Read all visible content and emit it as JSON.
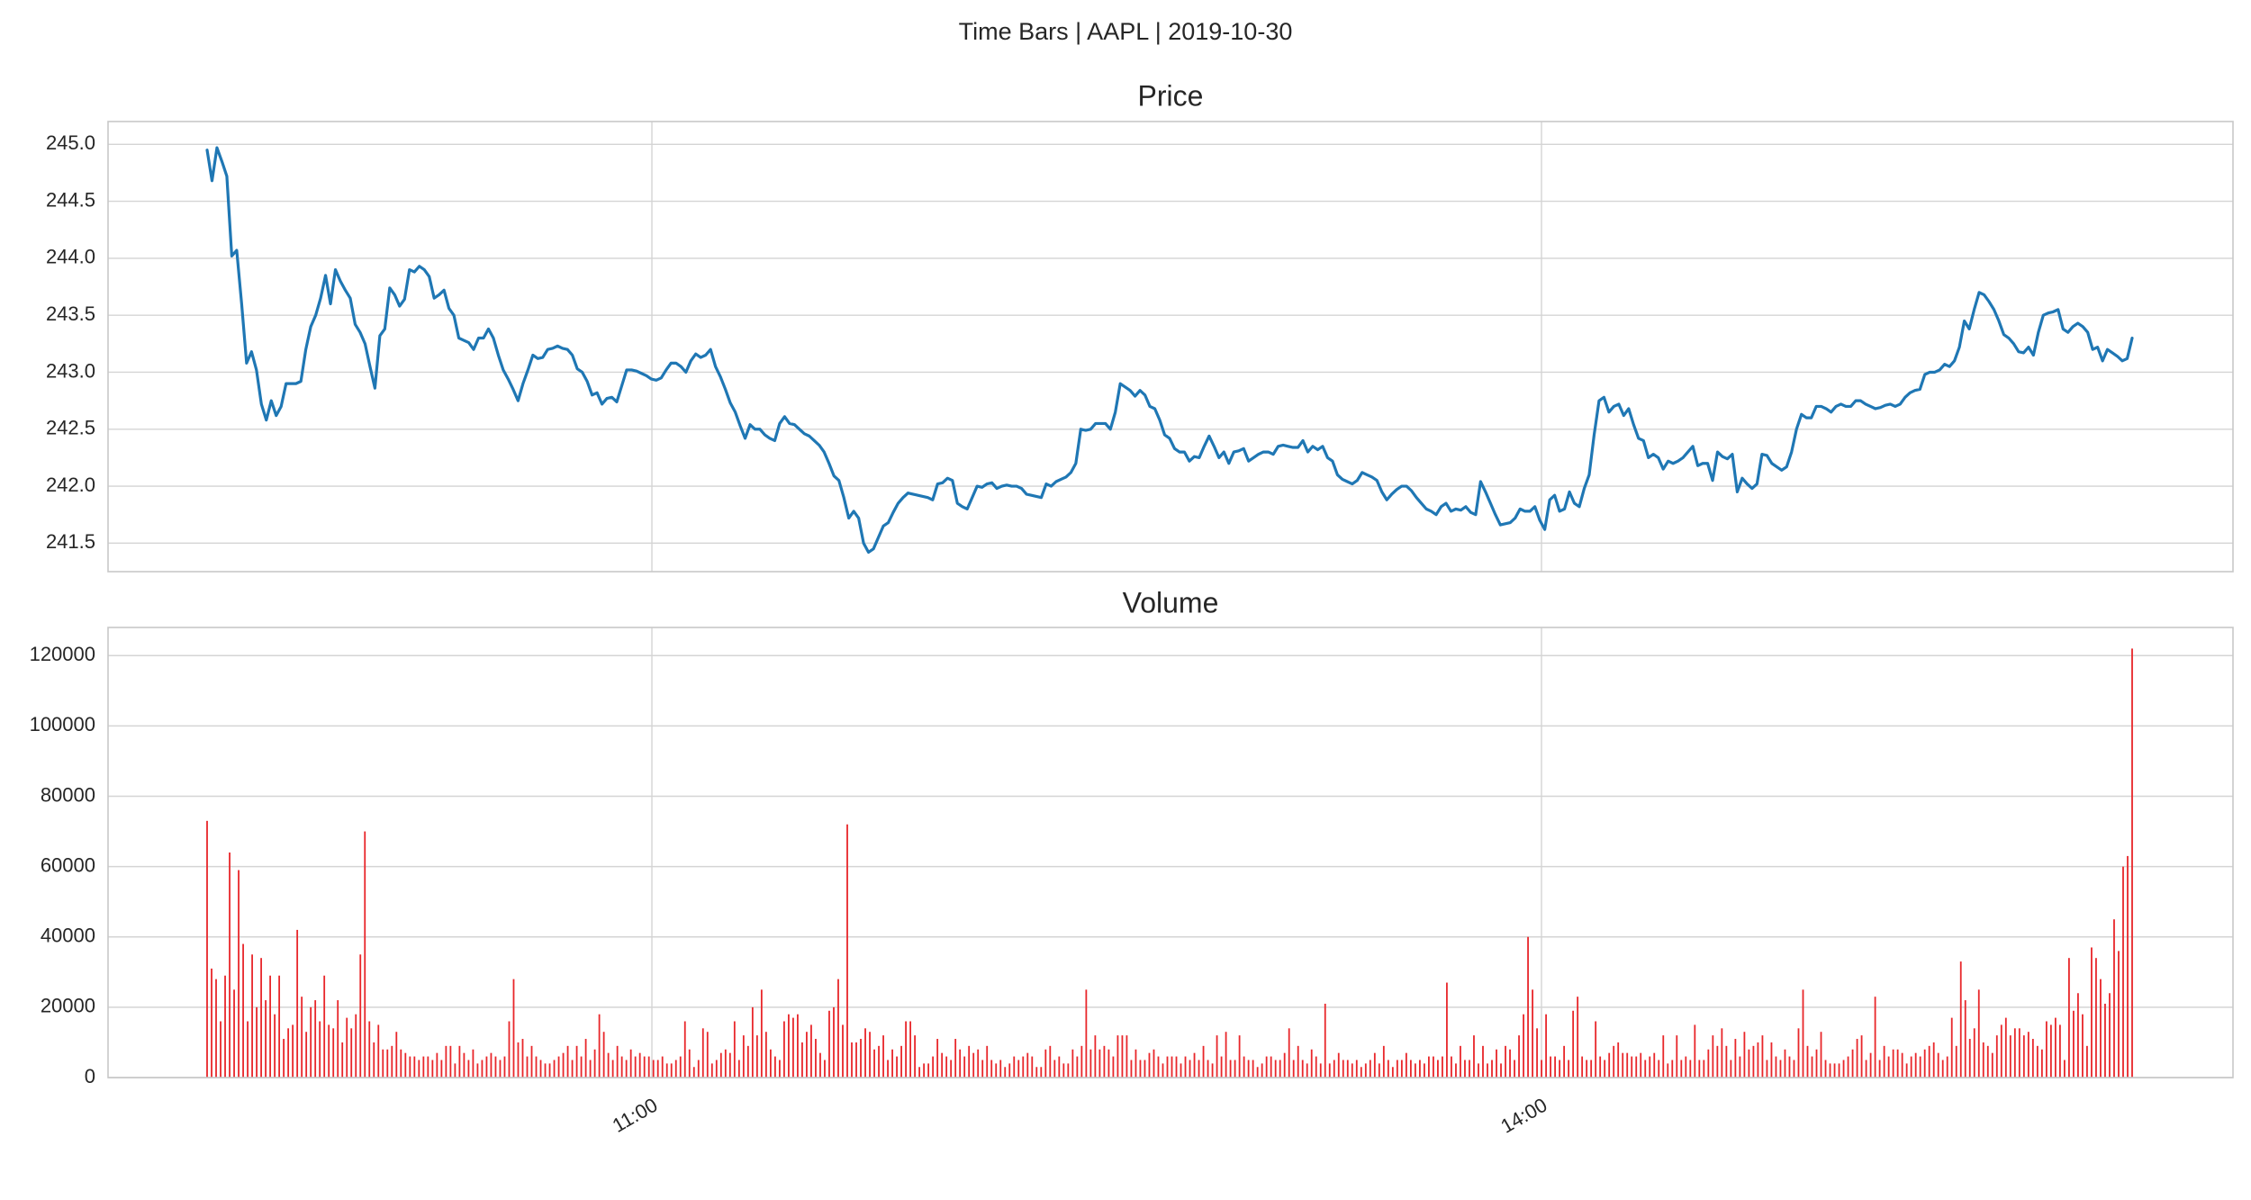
{
  "suptitle": "Time Bars | AAPL | 2019-10-30",
  "colors": {
    "price": "#1f77b4",
    "volume": "#e8262a"
  },
  "chart_data": [
    {
      "type": "line",
      "title": "Price",
      "xlabel": "",
      "ylabel": "",
      "x_axis": {
        "type": "time",
        "ticks": [
          "11:00",
          "14:00"
        ]
      },
      "ylim": [
        241.25,
        245.2
      ],
      "yticks": [
        "241.5",
        "242.0",
        "242.5",
        "243.0",
        "243.5",
        "244.0",
        "244.5",
        "245.0"
      ],
      "grid": true,
      "series": [
        {
          "values": [
            244.95,
            244.68,
            244.97,
            244.85,
            244.72,
            244.02,
            244.07,
            243.6,
            243.08,
            243.18,
            243.02,
            242.72,
            242.58,
            242.75,
            242.62,
            242.7,
            242.9,
            242.9,
            242.9,
            242.92,
            243.2,
            243.4,
            243.5,
            243.65,
            243.85,
            243.6,
            243.9,
            243.8,
            243.72,
            243.65,
            243.42,
            243.35,
            243.25,
            243.05,
            242.86,
            243.32,
            243.38,
            243.74,
            243.68,
            243.58,
            243.64,
            243.9,
            243.88,
            243.93,
            243.9,
            243.84,
            243.65,
            243.68,
            243.72,
            243.56,
            243.5,
            243.3,
            243.28,
            243.26,
            243.2,
            243.3,
            243.3,
            243.38,
            243.3,
            243.15,
            243.02,
            242.94,
            242.85,
            242.75,
            242.9,
            243.02,
            243.15,
            243.12,
            243.13,
            243.2,
            243.21,
            243.23,
            243.21,
            243.2,
            243.15,
            243.03,
            243.0,
            242.92,
            242.8,
            242.82,
            242.72,
            242.77,
            242.78,
            242.74,
            242.88,
            243.02,
            243.02,
            243.01,
            242.99,
            242.97,
            242.94,
            242.93,
            242.95,
            243.02,
            243.08,
            243.08,
            243.05,
            243.0,
            243.1,
            243.16,
            243.13,
            243.15,
            243.2,
            243.05,
            242.96,
            242.85,
            242.73,
            242.65,
            242.53,
            242.42,
            242.54,
            242.5,
            242.5,
            242.45,
            242.42,
            242.4,
            242.55,
            242.61,
            242.55,
            242.54,
            242.5,
            242.46,
            242.44,
            242.4,
            242.36,
            242.3,
            242.2,
            242.09,
            242.05,
            241.9,
            241.72,
            241.78,
            241.72,
            241.5,
            241.42,
            241.45,
            241.55,
            241.65,
            241.68,
            241.77,
            241.85,
            241.9,
            241.94,
            241.93,
            241.92,
            241.91,
            241.9,
            241.88,
            242.02,
            242.03,
            242.07,
            242.05,
            241.85,
            241.82,
            241.8,
            241.9,
            242.0,
            241.99,
            242.02,
            242.03,
            241.98,
            242.0,
            242.01,
            242.0,
            242.0,
            241.98,
            241.93,
            241.92,
            241.91,
            241.9,
            242.02,
            242.0,
            242.04,
            242.06,
            242.08,
            242.12,
            242.2,
            242.5,
            242.49,
            242.5,
            242.55,
            242.55,
            242.55,
            242.5,
            242.65,
            242.9,
            242.87,
            242.84,
            242.79,
            242.84,
            242.8,
            242.7,
            242.68,
            242.58,
            242.45,
            242.42,
            242.33,
            242.3,
            242.3,
            242.22,
            242.26,
            242.25,
            242.35,
            242.44,
            242.35,
            242.25,
            242.3,
            242.2,
            242.3,
            242.31,
            242.33,
            242.22,
            242.25,
            242.28,
            242.3,
            242.3,
            242.28,
            242.35,
            242.36,
            242.35,
            242.34,
            242.34,
            242.4,
            242.3,
            242.35,
            242.32,
            242.35,
            242.25,
            242.22,
            242.1,
            242.06,
            242.04,
            242.02,
            242.05,
            242.12,
            242.1,
            242.08,
            242.05,
            241.95,
            241.88,
            241.93,
            241.97,
            242.0,
            242.0,
            241.96,
            241.9,
            241.85,
            241.8,
            241.78,
            241.75,
            241.82,
            241.85,
            241.78,
            241.8,
            241.79,
            241.82,
            241.77,
            241.75,
            242.04,
            241.95,
            241.85,
            241.75,
            241.66,
            241.67,
            241.68,
            241.72,
            241.8,
            241.78,
            241.78,
            241.82,
            241.7,
            241.62,
            241.88,
            241.92,
            241.78,
            241.8,
            241.95,
            241.85,
            241.82,
            241.98,
            242.1,
            242.45,
            242.75,
            242.78,
            242.65,
            242.7,
            242.72,
            242.62,
            242.68,
            242.54,
            242.42,
            242.4,
            242.25,
            242.28,
            242.25,
            242.15,
            242.22,
            242.2,
            242.22,
            242.25,
            242.3,
            242.35,
            242.18,
            242.2,
            242.2,
            242.05,
            242.3,
            242.26,
            242.24,
            242.28,
            241.95,
            242.07,
            242.02,
            241.98,
            242.02,
            242.28,
            242.27,
            242.2,
            242.17,
            242.14,
            242.17,
            242.3,
            242.5,
            242.63,
            242.6,
            242.6,
            242.7,
            242.7,
            242.68,
            242.65,
            242.7,
            242.72,
            242.7,
            242.7,
            242.75,
            242.75,
            242.72,
            242.7,
            242.68,
            242.69,
            242.71,
            242.72,
            242.7,
            242.72,
            242.78,
            242.82,
            242.84,
            242.85,
            242.98,
            243.0,
            243.0,
            243.02,
            243.07,
            243.05,
            243.1,
            243.22,
            243.45,
            243.38,
            243.55,
            243.7,
            243.68,
            243.62,
            243.55,
            243.45,
            243.33,
            243.3,
            243.25,
            243.18,
            243.17,
            243.22,
            243.15,
            243.35,
            243.5,
            243.52,
            243.53,
            243.55,
            243.38,
            243.35,
            243.4,
            243.43,
            243.4,
            243.35,
            243.2,
            243.22,
            243.1,
            243.2,
            243.17,
            243.14,
            243.1,
            243.12,
            243.3
          ]
        }
      ]
    },
    {
      "type": "bar",
      "title": "Volume",
      "xlabel": "",
      "ylabel": "",
      "x_axis": {
        "type": "time",
        "ticks": [
          "11:00",
          "14:00"
        ]
      },
      "ylim": [
        0,
        128000
      ],
      "yticks": [
        "0",
        "20000",
        "40000",
        "60000",
        "80000",
        "100000",
        "120000"
      ],
      "grid": true,
      "series": [
        {
          "values": [
            73000,
            31000,
            28000,
            16000,
            29000,
            64000,
            25000,
            59000,
            38000,
            16000,
            35000,
            20000,
            34000,
            22000,
            29000,
            18000,
            29000,
            11000,
            14000,
            15000,
            42000,
            23000,
            13000,
            20000,
            22000,
            16000,
            29000,
            15000,
            14000,
            22000,
            10000,
            17000,
            14000,
            18000,
            35000,
            70000,
            16000,
            10000,
            15000,
            8000,
            8000,
            9000,
            13000,
            8000,
            7000,
            6000,
            6000,
            5000,
            6000,
            6000,
            5000,
            7000,
            5000,
            9000,
            9000,
            4000,
            9000,
            7000,
            5000,
            8000,
            4000,
            5000,
            6000,
            7000,
            6000,
            5000,
            6000,
            16000,
            28000,
            10000,
            11000,
            6000,
            9000,
            6000,
            5000,
            4000,
            4000,
            5000,
            6000,
            7000,
            9000,
            5000,
            9000,
            6000,
            11000,
            5000,
            8000,
            18000,
            13000,
            7000,
            5000,
            9000,
            6000,
            5000,
            8000,
            6000,
            7000,
            6000,
            6000,
            5000,
            5000,
            6000,
            4000,
            4000,
            5000,
            6000,
            16000,
            8000,
            3000,
            5000,
            14000,
            13000,
            4000,
            5000,
            7000,
            8000,
            7000,
            16000,
            5000,
            12000,
            9000,
            20000,
            12000,
            25000,
            13000,
            8000,
            6000,
            5000,
            16000,
            18000,
            17000,
            18000,
            10000,
            13000,
            15000,
            11000,
            7000,
            5000,
            19000,
            20000,
            28000,
            15000,
            72000,
            10000,
            10000,
            11000,
            14000,
            13000,
            8000,
            9000,
            12000,
            5000,
            8000,
            6000,
            9000,
            16000,
            16000,
            12000,
            3000,
            4000,
            4000,
            6000,
            11000,
            7000,
            6000,
            5000,
            11000,
            8000,
            6000,
            9000,
            7000,
            8000,
            5000,
            9000,
            5000,
            4000,
            5000,
            3000,
            4000,
            6000,
            5000,
            6000,
            7000,
            6000,
            3000,
            3000,
            8000,
            9000,
            5000,
            6000,
            4000,
            4000,
            8000,
            6000,
            9000,
            25000,
            8000,
            12000,
            8000,
            9000,
            8000,
            6000,
            12000,
            12000,
            12000,
            5000,
            8000,
            5000,
            5000,
            7000,
            8000,
            6000,
            4000,
            6000,
            6000,
            6000,
            4000,
            6000,
            5000,
            7000,
            5000,
            9000,
            5000,
            4000,
            12000,
            6000,
            13000,
            5000,
            5000,
            12000,
            6000,
            5000,
            5000,
            3000,
            4000,
            6000,
            6000,
            5000,
            5000,
            7000,
            14000,
            5000,
            9000,
            5000,
            4000,
            8000,
            6000,
            4000,
            21000,
            4000,
            5000,
            7000,
            5000,
            5000,
            4000,
            5000,
            3000,
            4000,
            5000,
            7000,
            4000,
            9000,
            5000,
            3000,
            5000,
            5000,
            7000,
            5000,
            4000,
            5000,
            4000,
            6000,
            6000,
            5000,
            6000,
            27000,
            6000,
            4000,
            9000,
            5000,
            5000,
            12000,
            4000,
            9000,
            4000,
            5000,
            8000,
            4000,
            9000,
            8000,
            5000,
            12000,
            18000,
            40000,
            25000,
            14000,
            5000,
            18000,
            6000,
            6000,
            5000,
            9000,
            5000,
            19000,
            23000,
            6000,
            5000,
            5000,
            16000,
            6000,
            5000,
            7000,
            9000,
            10000,
            7000,
            7000,
            6000,
            6000,
            7000,
            5000,
            6000,
            7000,
            5000,
            12000,
            4000,
            5000,
            12000,
            5000,
            6000,
            5000,
            15000,
            5000,
            5000,
            8000,
            12000,
            9000,
            14000,
            9000,
            5000,
            11000,
            6000,
            13000,
            8000,
            9000,
            10000,
            12000,
            5000,
            10000,
            6000,
            5000,
            8000,
            6000,
            5000,
            14000,
            25000,
            9000,
            6000,
            8000,
            13000,
            5000,
            4000,
            4000,
            4000,
            5000,
            6000,
            8000,
            11000,
            12000,
            5000,
            7000,
            23000,
            5000,
            9000,
            6000,
            8000,
            8000,
            7000,
            4000,
            6000,
            7000,
            6000,
            8000,
            9000,
            10000,
            7000,
            5000,
            6000,
            17000,
            9000,
            33000,
            22000,
            11000,
            14000,
            25000,
            10000,
            9000,
            7000,
            12000,
            15000,
            17000,
            12000,
            14000,
            14000,
            12000,
            13000,
            11000,
            9000,
            8000,
            16000,
            15000,
            17000,
            15000,
            5000,
            34000,
            19000,
            24000,
            18000,
            9000,
            37000,
            34000,
            28000,
            21000,
            24000,
            45000,
            36000,
            60000,
            63000,
            122000
          ]
        }
      ]
    }
  ]
}
